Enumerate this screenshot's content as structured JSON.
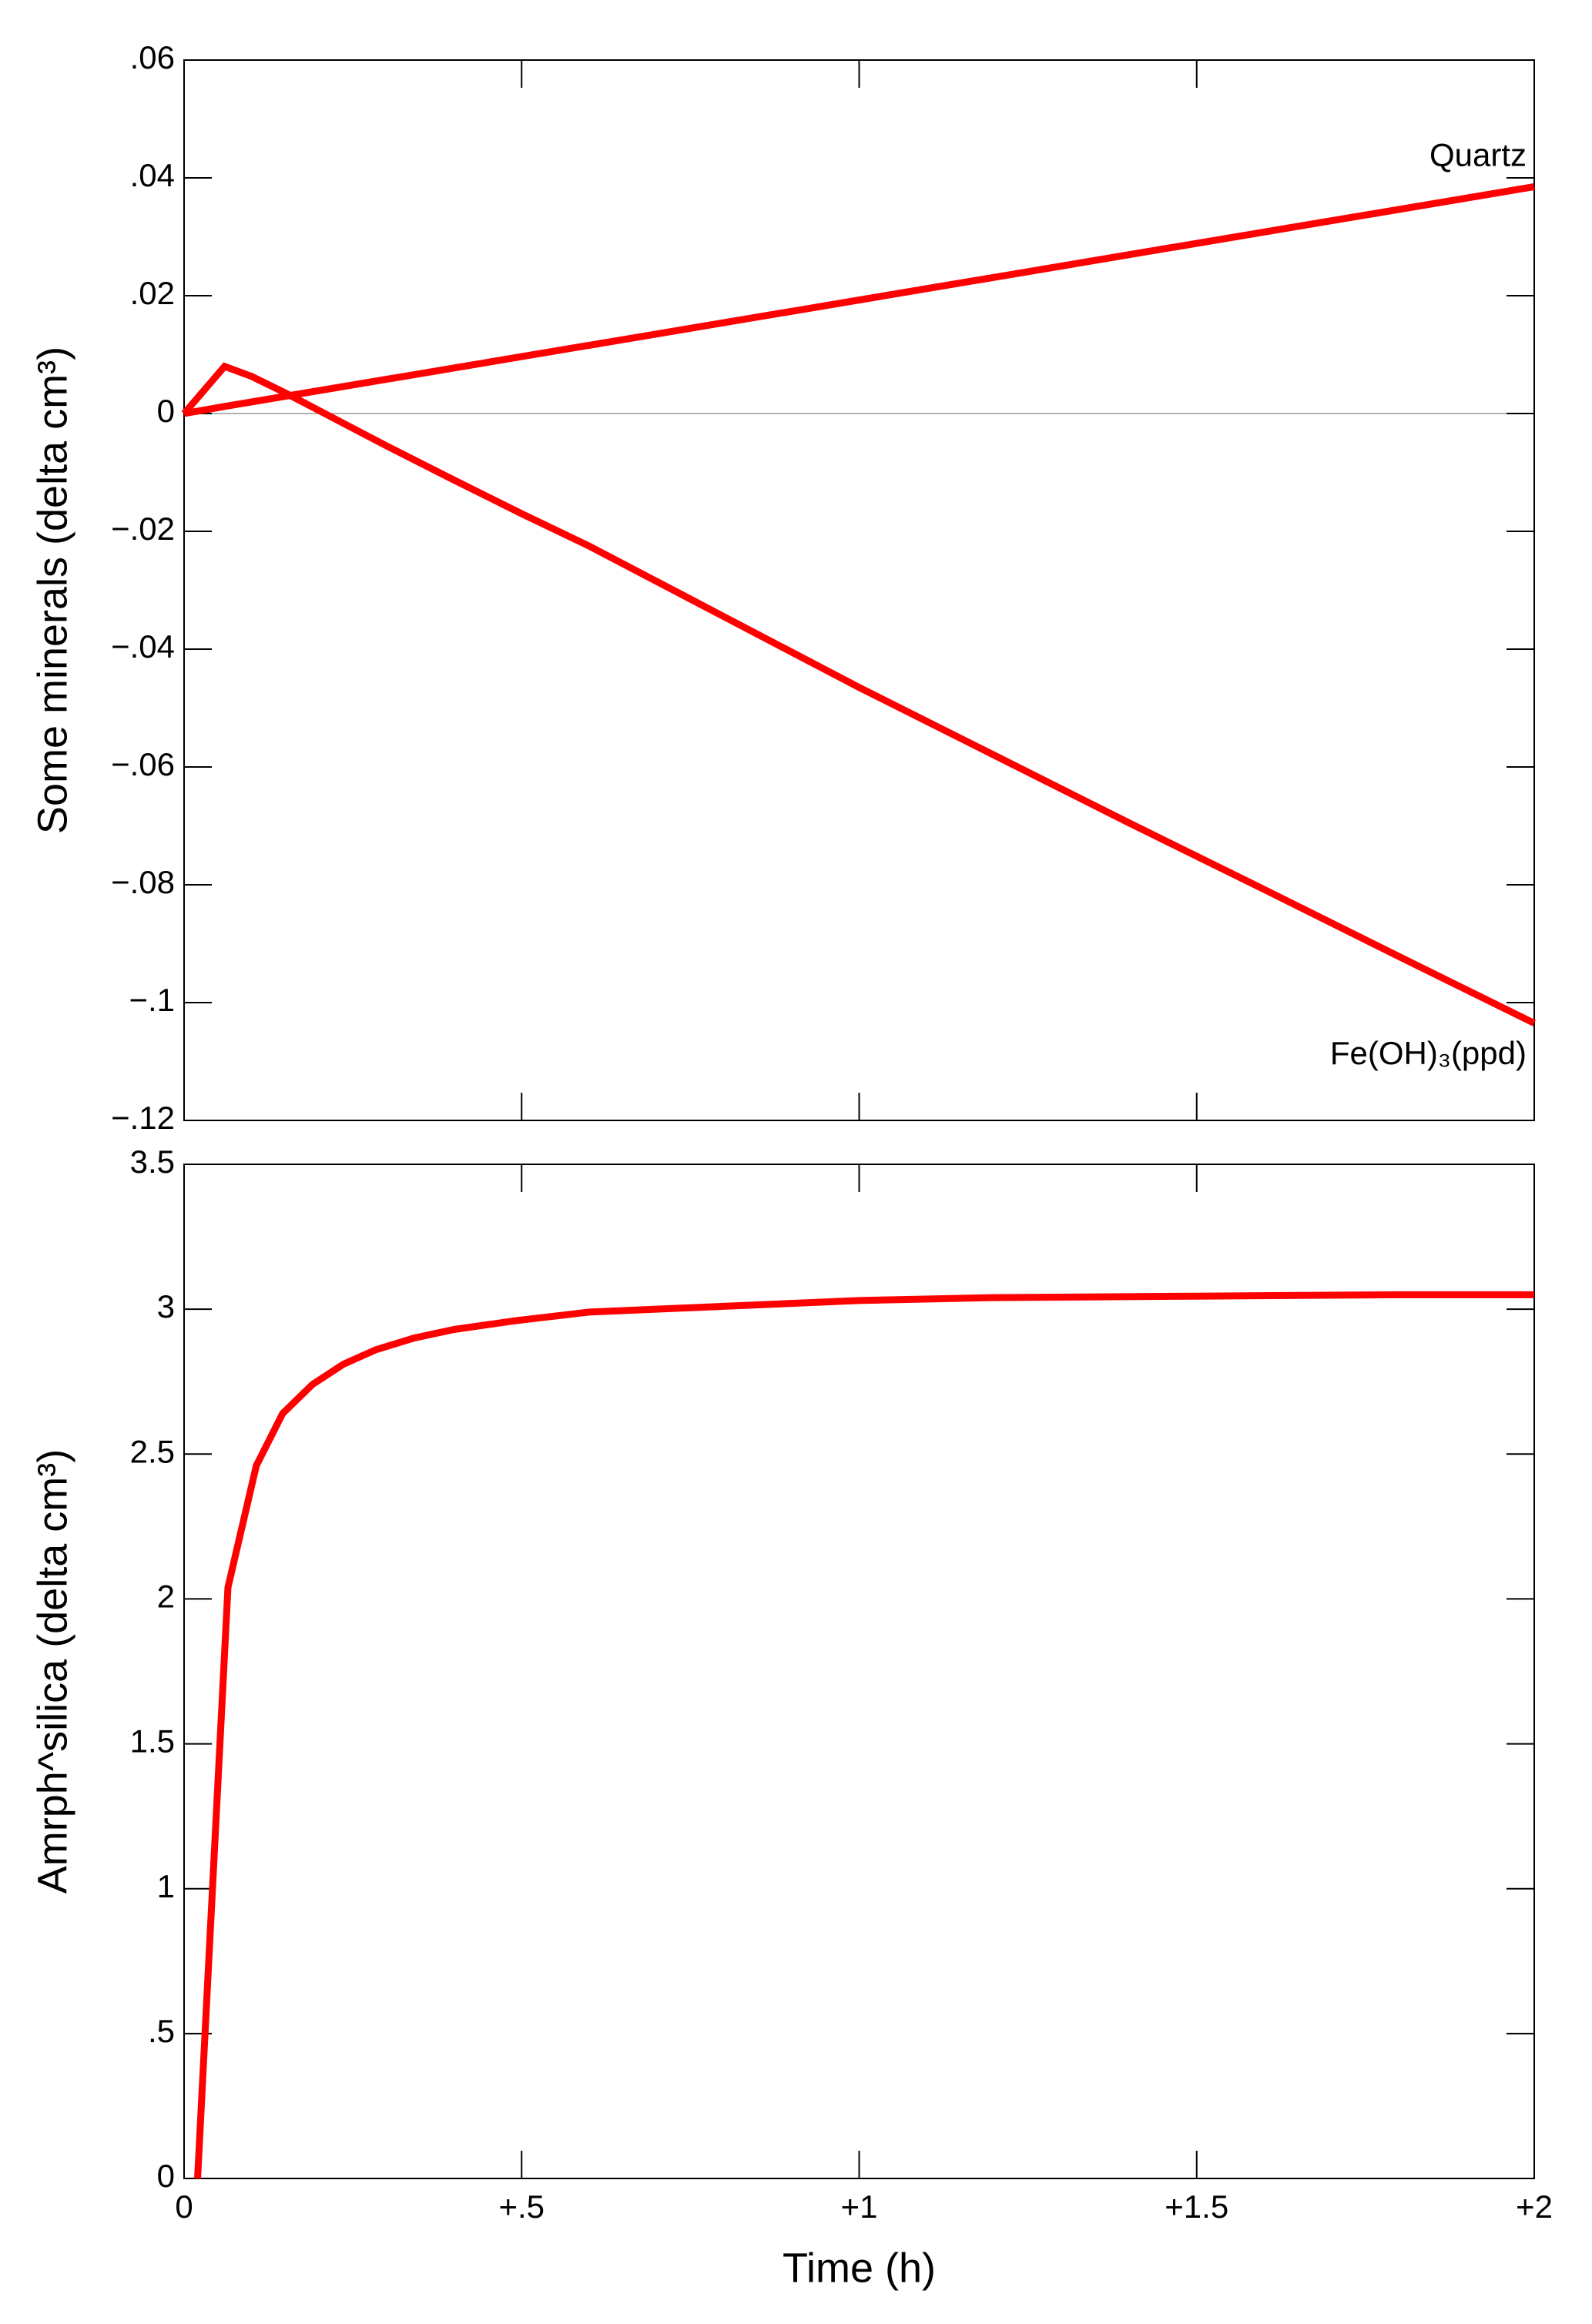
{
  "chart_data": [
    {
      "type": "line",
      "ylabel": "Some minerals (delta cm³)",
      "xlim": [
        0,
        2
      ],
      "ylim": [
        -0.12,
        0.06
      ],
      "yticks": [
        {
          "value": 0.06,
          "label": ".06"
        },
        {
          "value": 0.04,
          "label": ".04"
        },
        {
          "value": 0.02,
          "label": ".02"
        },
        0,
        {
          "value": -0.02,
          "label": "−.02"
        },
        {
          "value": -0.04,
          "label": "−.04"
        },
        {
          "value": -0.06,
          "label": "−.06"
        },
        {
          "value": -0.08,
          "label": "−.08"
        },
        {
          "value": -0.1,
          "label": "−.1"
        },
        {
          "value": -0.12,
          "label": "−.12"
        }
      ],
      "series": [
        {
          "name": "Quartz",
          "color": "#ff0000",
          "x": [
            0,
            0.06,
            2
          ],
          "values": [
            0,
            0.0012,
            0.0385
          ]
        },
        {
          "name": "Fe(OH)₃(ppd)",
          "color": "#ff0000",
          "x": [
            0,
            0.03,
            0.06,
            0.1,
            0.15,
            0.2,
            0.3,
            0.4,
            0.5,
            0.6,
            0.8,
            1,
            1.2,
            1.4,
            1.6,
            1.8,
            2
          ],
          "values": [
            0,
            0.004,
            0.008,
            0.0063,
            0.0035,
            0.0005,
            -0.0055,
            -0.0113,
            -0.017,
            -0.0225,
            -0.0345,
            -0.0465,
            -0.058,
            -0.0695,
            -0.0808,
            -0.0922,
            -0.1035
          ]
        }
      ]
    },
    {
      "type": "line",
      "xlabel": "Time (h)",
      "ylabel": "Amrph^silica (delta cm³)",
      "xlim": [
        0,
        2
      ],
      "xticks": [
        0,
        {
          "value": 0.5,
          "label": "+.5"
        },
        {
          "value": 1,
          "label": "+1"
        },
        {
          "value": 1.5,
          "label": "+1.5"
        },
        {
          "value": 2,
          "label": "+2"
        }
      ],
      "ylim": [
        0,
        3.5
      ],
      "yticks": [
        0,
        {
          "value": 0.5,
          "label": ".5"
        },
        1,
        1.5,
        2,
        2.5,
        3,
        3.5
      ],
      "series": [
        {
          "color": "#ff0000",
          "x": [
            0.02,
            0.065,
            0.107,
            0.146,
            0.19,
            0.236,
            0.284,
            0.34,
            0.4,
            0.49,
            0.6,
            0.8,
            1,
            1.2,
            1.5,
            1.8,
            2
          ],
          "values": [
            0,
            2.04,
            2.46,
            2.64,
            2.74,
            2.81,
            2.86,
            2.9,
            2.93,
            2.96,
            2.99,
            3.01,
            3.03,
            3.04,
            3.045,
            3.05,
            3.05
          ]
        }
      ]
    }
  ]
}
